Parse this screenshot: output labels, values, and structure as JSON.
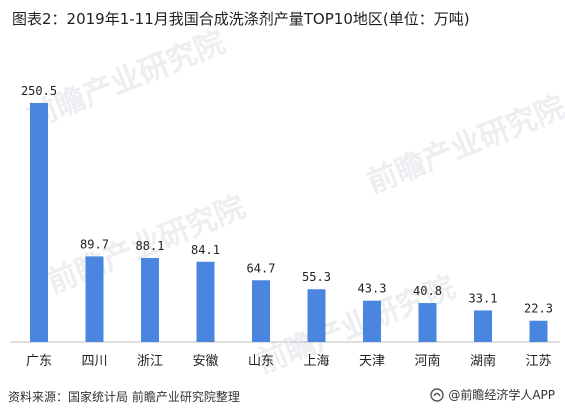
{
  "title": "图表2：2019年1-11月我国合成洗涤剂产量TOP10地区(单位：万吨)",
  "footer": {
    "source": "资料来源：国家统计局 前瞻产业研究院整理",
    "brand": "@前瞻经济学人APP"
  },
  "watermark": "前瞻产业研究院",
  "colors": {
    "bar": "#4a86e0",
    "axis": "#bfbfbf"
  },
  "chart_data": {
    "type": "bar",
    "title": "图表2：2019年1-11月我国合成洗涤剂产量TOP10地区(单位：万吨)",
    "categories": [
      "广东",
      "四川",
      "浙江",
      "安徽",
      "山东",
      "上海",
      "天津",
      "河南",
      "湖南",
      "江苏"
    ],
    "values": [
      250.5,
      89.7,
      88.1,
      84.1,
      64.7,
      55.3,
      43.3,
      40.8,
      33.1,
      22.3
    ],
    "value_labels": [
      "250.5",
      "89.7",
      "88.1",
      "84.1",
      "64.7",
      "55.3",
      "43.3",
      "40.8",
      "33.1",
      "22.3"
    ],
    "ylim": [
      0,
      250.5
    ],
    "grid": false,
    "legend": "none"
  }
}
